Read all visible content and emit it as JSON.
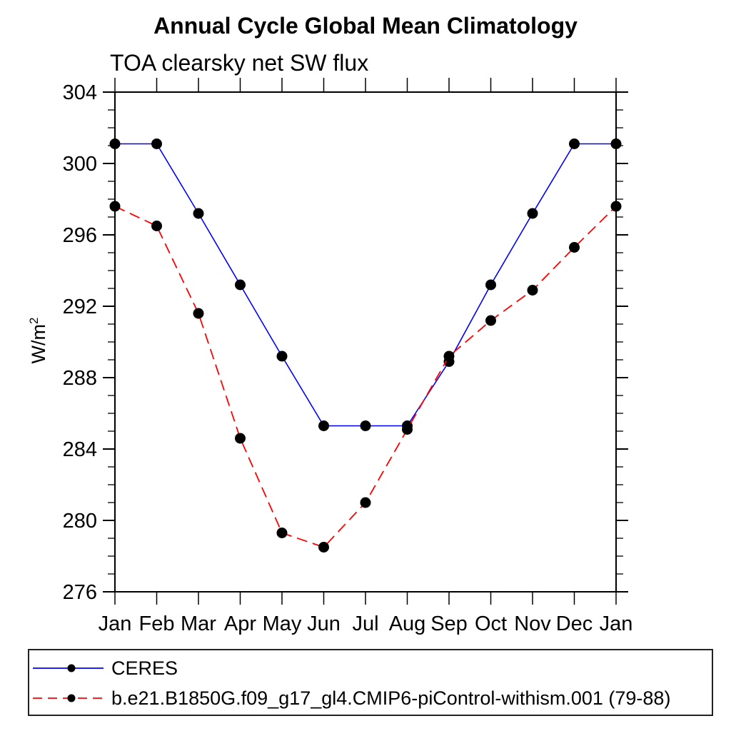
{
  "chart_data": {
    "type": "line",
    "title": "Annual Cycle Global Mean Climatology",
    "subtitle": "TOA clearsky net SW flux",
    "ylabel": "W/m²",
    "ylabel_base": "W/m",
    "ylabel_sup": "2",
    "categories": [
      "Jan",
      "Feb",
      "Mar",
      "Apr",
      "May",
      "Jun",
      "Jul",
      "Aug",
      "Sep",
      "Oct",
      "Nov",
      "Dec",
      "Jan"
    ],
    "ylim": [
      276,
      304
    ],
    "ytick_major_step": 4,
    "ytick_minor_step": 1,
    "ytick_labels": [
      "276",
      "280",
      "284",
      "288",
      "292",
      "296",
      "300",
      "304"
    ],
    "grid": false,
    "legend_position": "bottom-left-box",
    "axis_color": "#000000",
    "series": [
      {
        "key": "ceres",
        "name": "CERES",
        "color": "#0000ff",
        "line_style": "solid",
        "marker": "filled-circle",
        "marker_color": "#000000",
        "values": [
          301.1,
          301.1,
          297.2,
          293.2,
          289.2,
          285.3,
          285.3,
          285.3,
          288.9,
          293.2,
          297.2,
          301.1,
          301.1
        ]
      },
      {
        "key": "model",
        "name": "b.e21.B1850G.f09_g17_gl4.CMIP6-piControl-withism.001 (79-88)",
        "color": "#ff0000",
        "line_style": "dashed",
        "marker": "filled-circle",
        "marker_color": "#000000",
        "values": [
          297.6,
          296.5,
          291.6,
          284.6,
          279.3,
          278.5,
          281.0,
          285.1,
          289.2,
          291.2,
          292.9,
          295.3,
          297.6
        ]
      }
    ]
  }
}
